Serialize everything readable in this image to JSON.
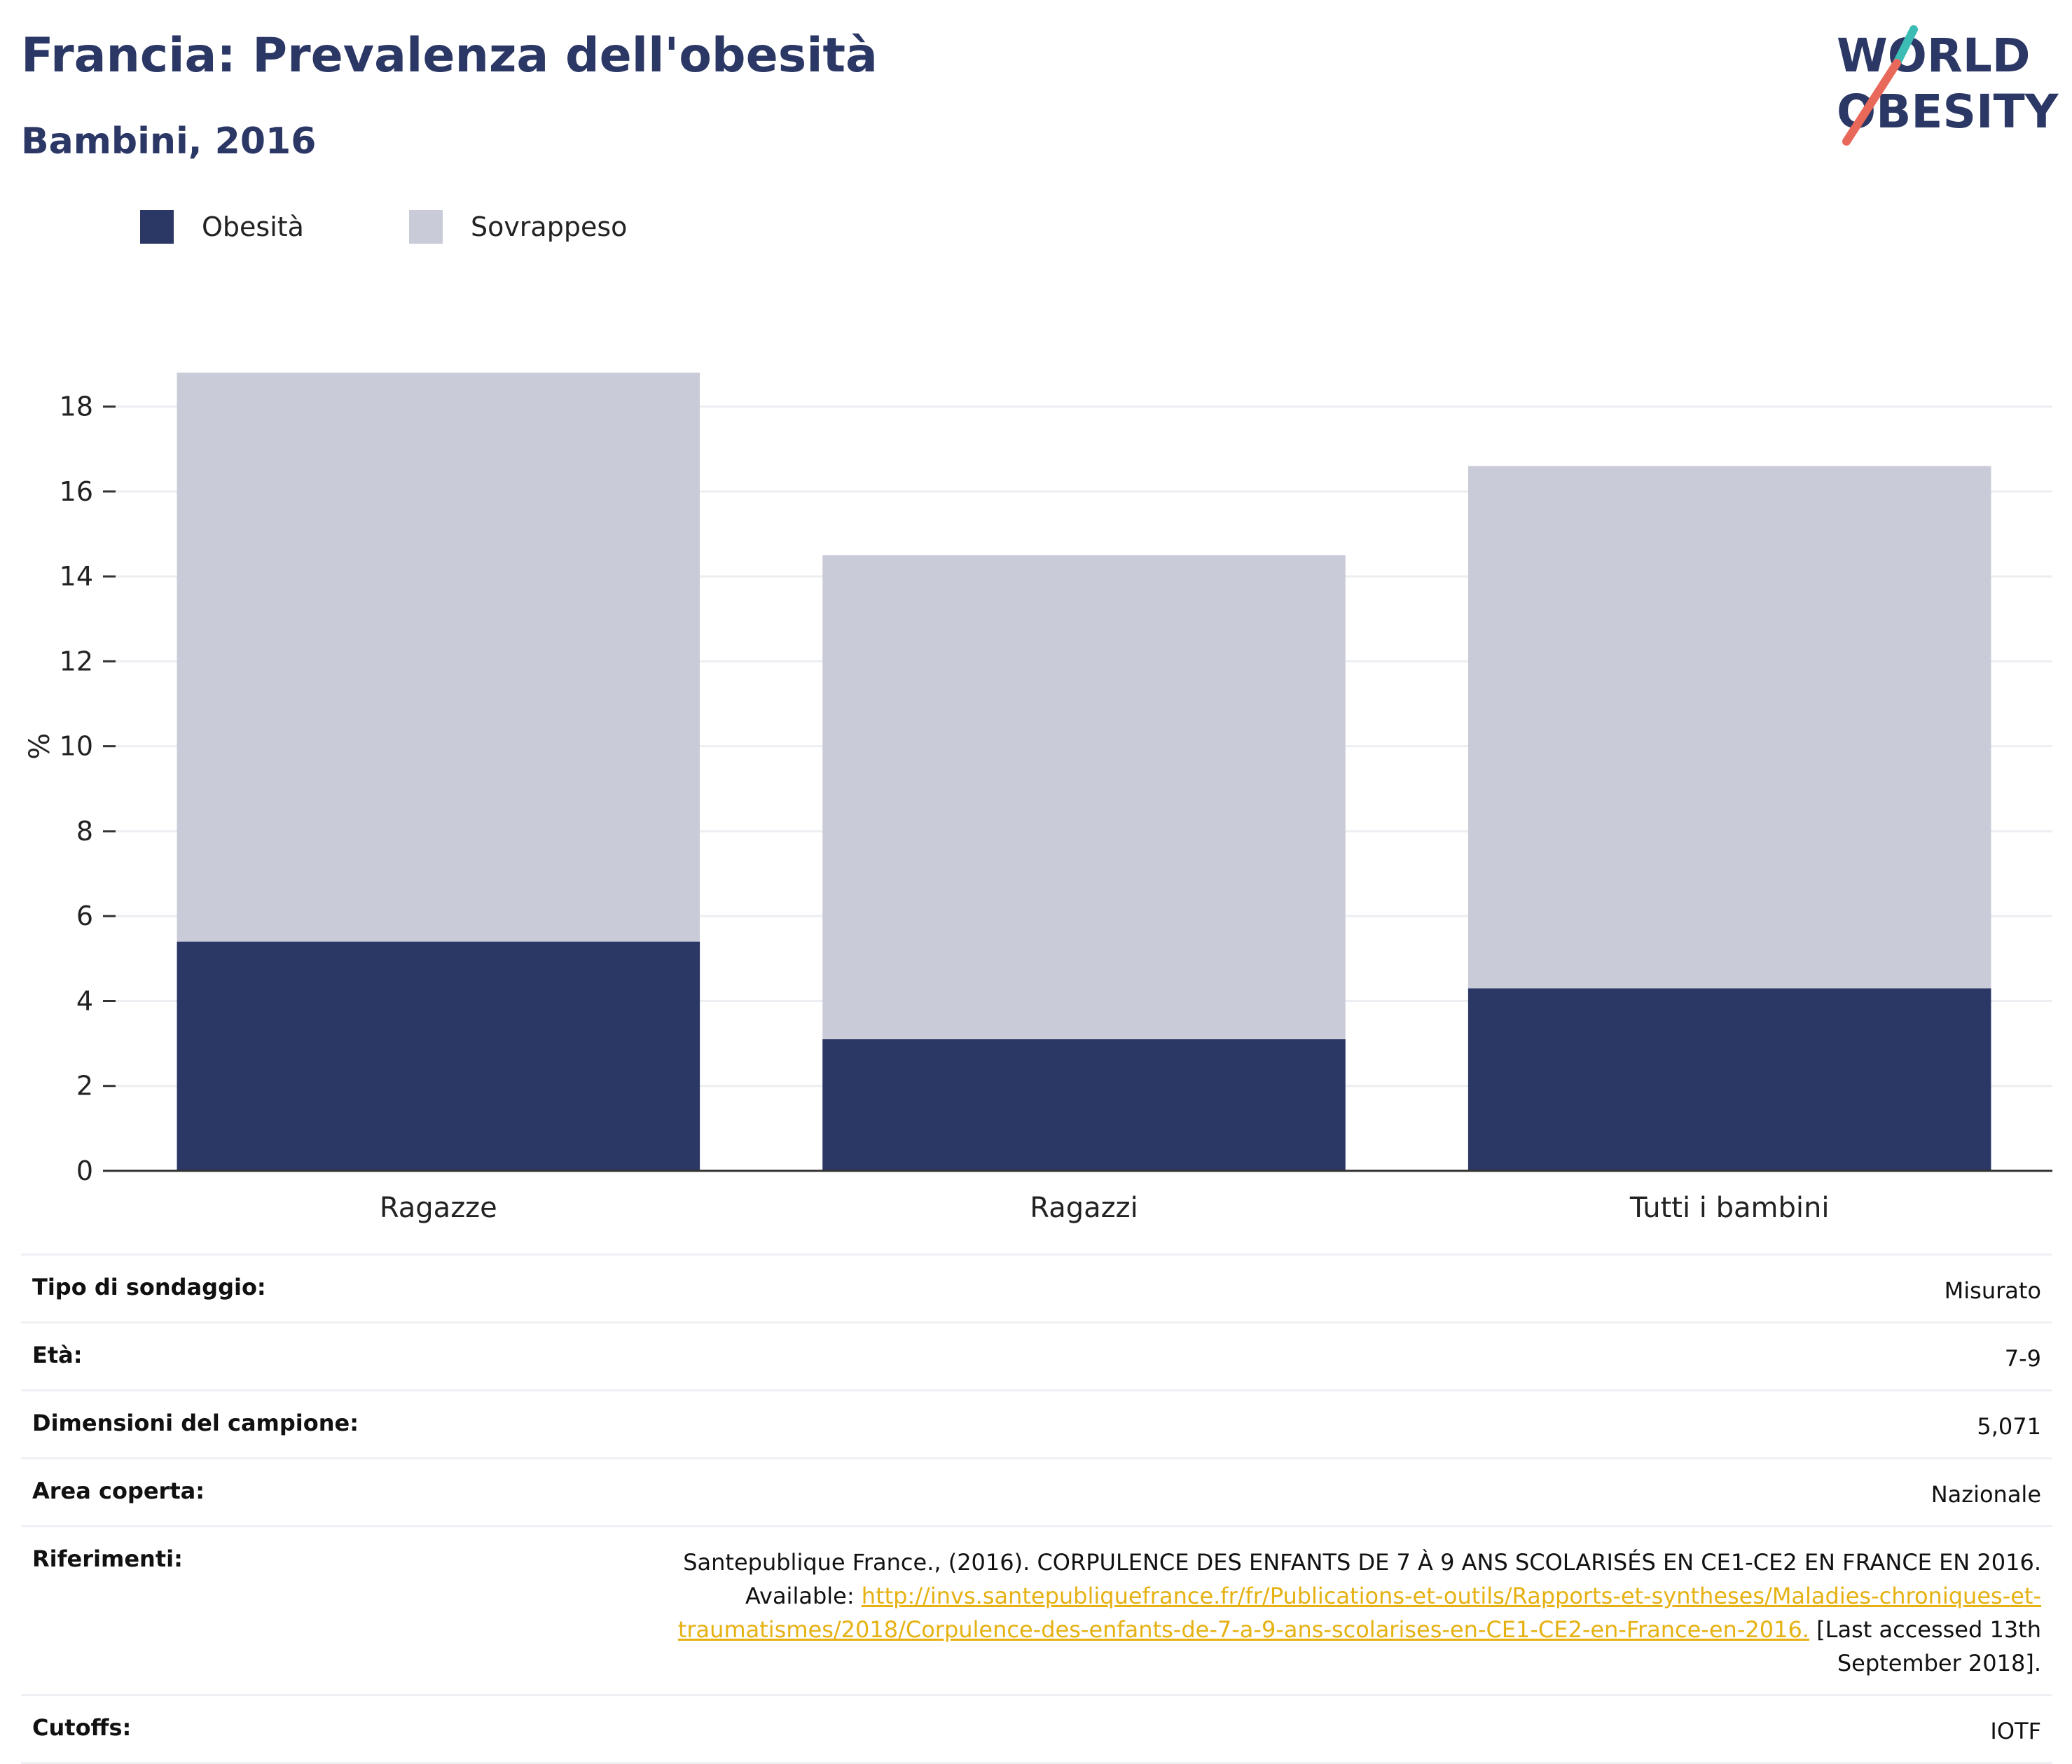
{
  "header": {
    "title": "Francia: Prevalenza dell'obesità",
    "subtitle": "Bambini, 2016"
  },
  "logo": {
    "line1": "WORLD",
    "line2": "OBESITY"
  },
  "colors": {
    "obesity": "#2b3764",
    "overweight": "#c9ccd8",
    "accent_teal": "#3cbcb4",
    "accent_red": "#e8685a",
    "link": "#e6b112"
  },
  "chart_data": {
    "type": "bar",
    "stacked": true,
    "categories": [
      "Ragazze",
      "Ragazzi",
      "Tutti i bambini"
    ],
    "series": [
      {
        "name": "Obesità",
        "values": [
          5.4,
          3.1,
          4.3
        ]
      },
      {
        "name": "Sovrappeso",
        "values": [
          13.4,
          11.4,
          12.3
        ]
      }
    ],
    "ylabel": "%",
    "ylim": [
      0,
      19
    ],
    "yticks": [
      0,
      2,
      4,
      6,
      8,
      10,
      12,
      14,
      16,
      18
    ],
    "grid": true,
    "legend": "top-left"
  },
  "info": {
    "survey_label": "Tipo di sondaggio:",
    "survey_value": "Misurato",
    "age_label": "Età:",
    "age_value": "7-9",
    "sample_label": "Dimensioni del campione:",
    "sample_value": "5,071",
    "area_label": "Area coperta:",
    "area_value": "Nazionale",
    "ref_label": "Riferimenti:",
    "ref_text1": "Santepublique France., (2016). CORPULENCE DES ENFANTS DE 7 À 9 ANS SCOLARISÉS EN CE1-CE2 EN FRANCE EN 2016.",
    "ref_available": "Available: ",
    "ref_link": "http://invs.santepubliquefrance.fr/fr/Publications-et-outils/Rapports-et-syntheses/Maladies-chroniques-et-traumatismes/2018/Corpulence-des-enfants-de-7-a-9-ans-scolarises-en-CE1-CE2-en-France-en-2016.",
    "ref_accessed": " [Last accessed 13th September 2018].",
    "cutoffs_label": "Cutoffs:",
    "cutoffs_value": "IOTF"
  }
}
